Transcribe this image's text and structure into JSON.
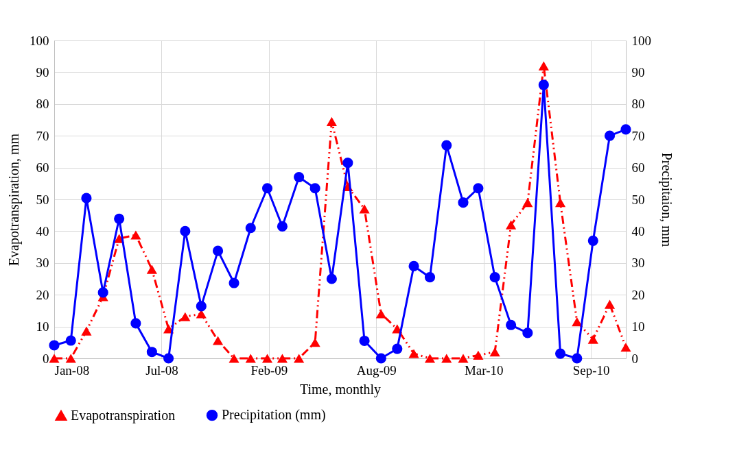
{
  "chart_data": {
    "type": "line",
    "xlabel": "Time, monthly",
    "ylabel": "Evapotranspiration, mm",
    "y2label": "Precipitaion, mm",
    "x": [
      "2008-01",
      "2008-02",
      "2008-03",
      "2008-04",
      "2008-05",
      "2008-06",
      "2008-07",
      "2008-08",
      "2008-09",
      "2008-10",
      "2008-11",
      "2008-12",
      "2009-01",
      "2009-02",
      "2009-03",
      "2009-04",
      "2009-05",
      "2009-06",
      "2009-07",
      "2009-08",
      "2009-09",
      "2009-10",
      "2009-11",
      "2009-12",
      "2010-01",
      "2010-02",
      "2010-03",
      "2010-04",
      "2010-05",
      "2010-06",
      "2010-07",
      "2010-08",
      "2010-09",
      "2010-10",
      "2010-11",
      "2010-12"
    ],
    "xlim": [
      "2008-01-01",
      "2010-12-01"
    ],
    "xticks": [
      {
        "value": "2008-01-01",
        "label": "Jan-08"
      },
      {
        "value": "2008-07-19",
        "label": "Jul-08"
      },
      {
        "value": "2009-02-04",
        "label": "Feb-09"
      },
      {
        "value": "2009-08-23",
        "label": "Aug-09"
      },
      {
        "value": "2010-03-11",
        "label": "Mar-10"
      },
      {
        "value": "2010-09-27",
        "label": "Sep-10"
      }
    ],
    "ylim": [
      0,
      100
    ],
    "yticks": [
      0,
      10,
      20,
      30,
      40,
      50,
      60,
      70,
      80,
      90,
      100
    ],
    "y2lim": [
      0,
      100
    ],
    "y2ticks": [
      0,
      10,
      20,
      30,
      40,
      50,
      60,
      70,
      80,
      90,
      100
    ],
    "grid": true,
    "legend": "bottom",
    "series": [
      {
        "name": "Evapotranspiration",
        "color": "#ff0000",
        "marker": "triangle",
        "line_style": "dashed",
        "values": [
          0,
          0,
          8.6,
          19.4,
          37.7,
          38.8,
          28,
          9.3,
          13.1,
          14,
          5.6,
          0,
          0,
          0,
          0,
          0,
          5,
          74.5,
          54,
          47,
          14,
          9.3,
          1.5,
          0,
          0,
          0,
          1,
          2,
          42,
          49,
          92,
          49,
          11.5,
          6,
          17,
          3.5
        ]
      },
      {
        "name": "Precipitation (mm)",
        "color": "#0000ff",
        "marker": "circle",
        "line_style": "solid",
        "axis": "y2",
        "values": [
          4.1,
          5.6,
          50.4,
          20.7,
          43.9,
          11,
          2,
          0,
          40,
          16.4,
          33.8,
          23.7,
          41,
          53.5,
          41.5,
          57,
          53.5,
          25,
          61.5,
          5.5,
          0,
          3,
          29,
          25.5,
          67,
          49,
          53.5,
          25.5,
          10.5,
          8,
          86,
          1.5,
          0,
          37,
          70,
          72
        ]
      }
    ]
  }
}
